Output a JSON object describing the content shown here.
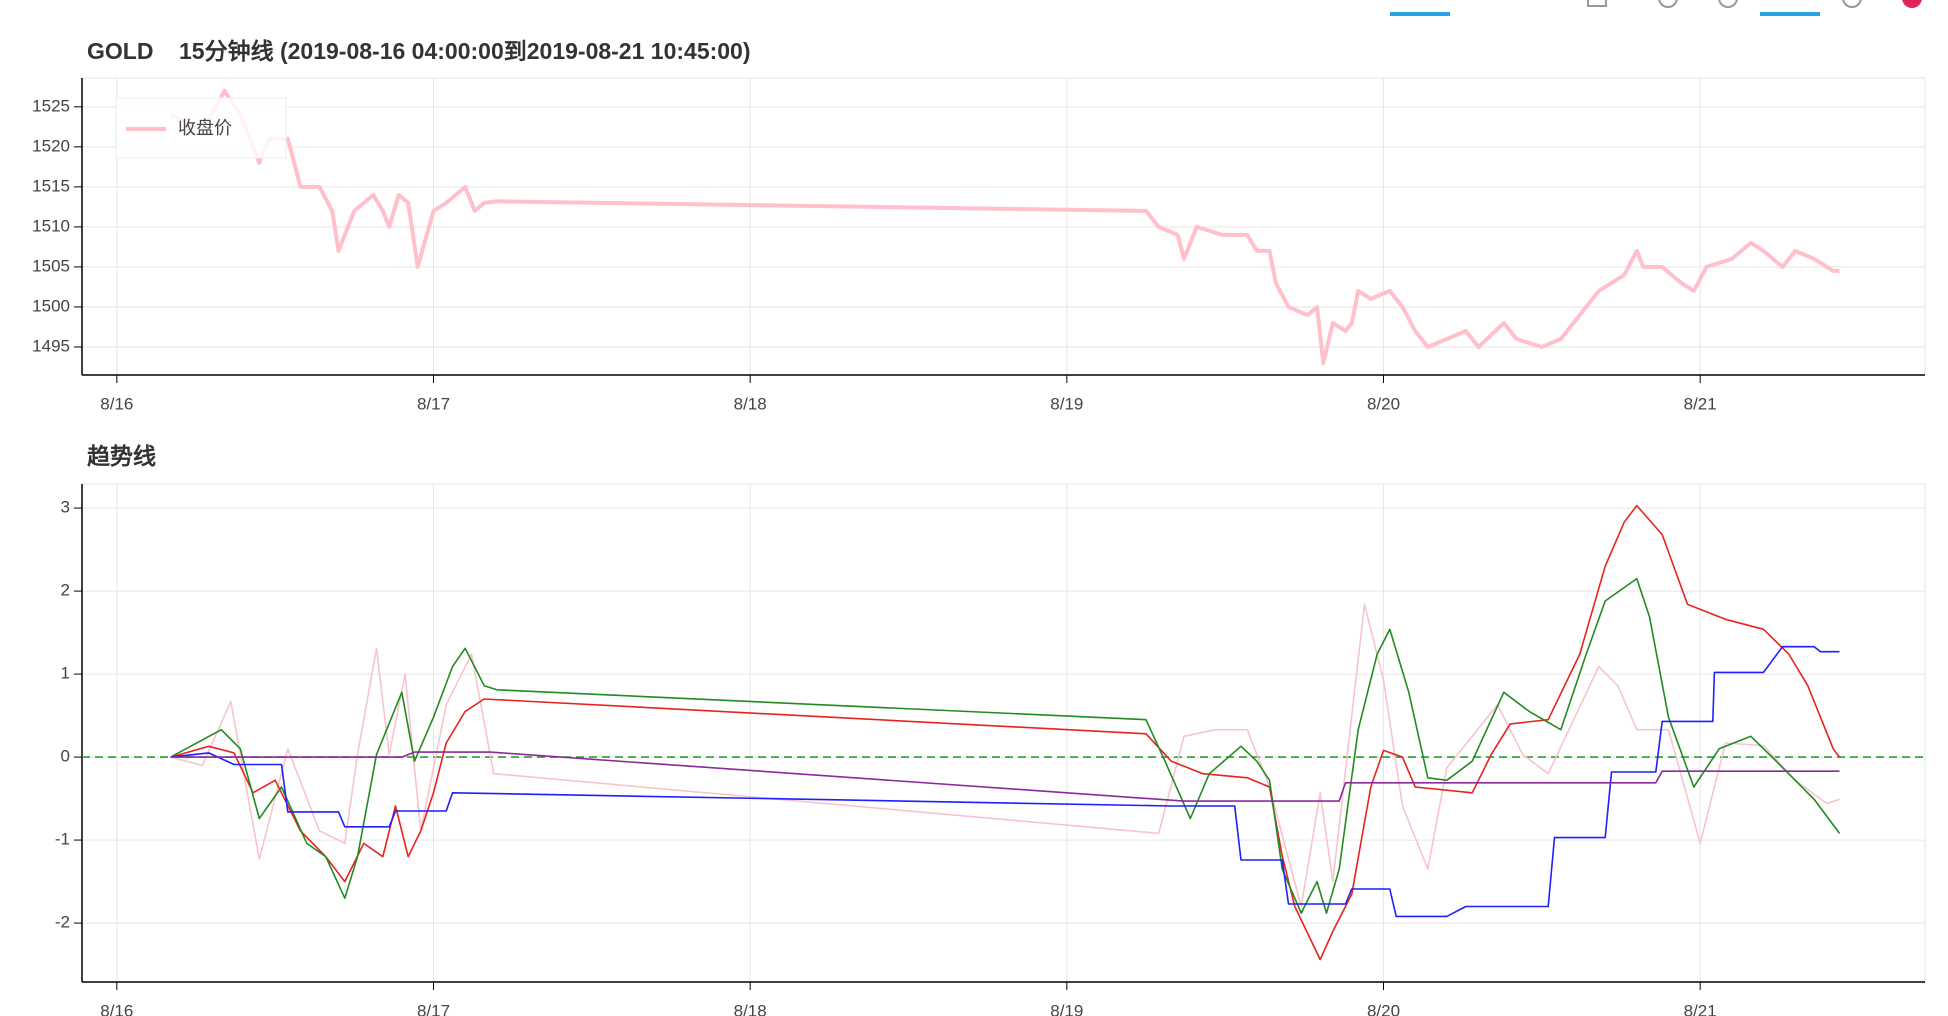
{
  "chart_data": [
    {
      "type": "line",
      "title": "GOLD    15分钟线 (2019-08-16 04:00:00到2019-08-21 10:45:00)",
      "xlim": [
        -0.11,
        5.71
      ],
      "ylim": [
        1491.5,
        1528.6
      ],
      "xticks": [
        {
          "value": 0,
          "label": "8/16"
        },
        {
          "value": 1,
          "label": "8/17"
        },
        {
          "value": 2,
          "label": "8/18"
        },
        {
          "value": 3,
          "label": "8/19"
        },
        {
          "value": 4,
          "label": "8/20"
        },
        {
          "value": 5,
          "label": "8/21"
        }
      ],
      "yticks": [
        1495,
        1500,
        1505,
        1510,
        1515,
        1520,
        1525
      ],
      "grid": true,
      "legend": "top-left",
      "line_width": 4,
      "series": [
        {
          "name": "收盘价",
          "color": "#ffc0cb",
          "x": [
            0.17,
            0.27,
            0.34,
            0.39,
            0.45,
            0.48,
            0.54,
            0.58,
            0.64,
            0.68,
            0.7,
            0.75,
            0.81,
            0.84,
            0.86,
            0.89,
            0.92,
            0.95,
            1.0,
            1.04,
            1.1,
            1.13,
            1.16,
            1.2,
            3.25,
            3.29,
            3.35,
            3.37,
            3.41,
            3.49,
            3.57,
            3.6,
            3.64,
            3.66,
            3.7,
            3.76,
            3.79,
            3.81,
            3.84,
            3.88,
            3.9,
            3.92,
            3.96,
            4.02,
            4.06,
            4.1,
            4.14,
            4.2,
            4.26,
            4.3,
            4.38,
            4.42,
            4.5,
            4.56,
            4.62,
            4.68,
            4.72,
            4.76,
            4.8,
            4.82,
            4.88,
            4.94,
            4.98,
            5.02,
            5.1,
            5.16,
            5.2,
            5.26,
            5.3,
            5.36,
            5.42,
            5.44
          ],
          "values": [
            1524,
            1522,
            1527,
            1524,
            1518,
            1521,
            1521,
            1515,
            1515,
            1512,
            1507,
            1512,
            1514,
            1512,
            1510,
            1514,
            1513,
            1505,
            1512,
            1513,
            1515,
            1512,
            1513,
            1513.2,
            1512,
            1510,
            1509,
            1506,
            1510,
            1509,
            1509,
            1507,
            1507,
            1503,
            1500,
            1499,
            1500,
            1493,
            1498,
            1497,
            1498,
            1502,
            1501,
            1502,
            1500,
            1497,
            1495,
            1496,
            1497,
            1495,
            1498,
            1496,
            1495,
            1496,
            1499,
            1502,
            1503,
            1504,
            1507,
            1505,
            1505,
            1503,
            1502,
            1505,
            1506,
            1508,
            1507,
            1505,
            1507,
            1506,
            1504.5,
            1504.5
          ]
        }
      ]
    },
    {
      "type": "line",
      "title": "趋势线",
      "xlim": [
        -0.11,
        5.71
      ],
      "ylim": [
        -2.71,
        3.29
      ],
      "xticks": [
        {
          "value": 0,
          "label": "8/16"
        },
        {
          "value": 1,
          "label": "8/17"
        },
        {
          "value": 2,
          "label": "8/18"
        },
        {
          "value": 3,
          "label": "8/19"
        },
        {
          "value": 4,
          "label": "8/20"
        },
        {
          "value": 5,
          "label": "8/21"
        }
      ],
      "yticks": [
        -2,
        -1,
        0,
        1,
        2,
        3
      ],
      "grid": true,
      "line_width": 1.6,
      "hlines": [
        {
          "value": 0,
          "color": "#2ca02c",
          "style": "dashed"
        }
      ],
      "series": [
        {
          "color": "#f8c4cc",
          "x": [
            0.17,
            0.27,
            0.36,
            0.45,
            0.54,
            0.64,
            0.72,
            0.76,
            0.82,
            0.86,
            0.91,
            0.96,
            1.04,
            1.12,
            1.19,
            3.29,
            3.37,
            3.47,
            3.57,
            3.64,
            3.74,
            3.8,
            3.84,
            3.94,
            4.0,
            4.06,
            4.14,
            4.2,
            4.36,
            4.44,
            4.52,
            4.68,
            4.74,
            4.8,
            4.9,
            5.0,
            5.08,
            5.2,
            5.3,
            5.4,
            5.44
          ],
          "values": [
            0,
            -0.1,
            0.67,
            -1.23,
            0.1,
            -0.89,
            -1.04,
            0.03,
            1.31,
            0.03,
            1.0,
            -0.89,
            0.63,
            1.24,
            -0.2,
            -0.92,
            0.25,
            0.33,
            0.33,
            -0.36,
            -1.8,
            -0.43,
            -1.5,
            1.84,
            0.93,
            -0.59,
            -1.35,
            -0.13,
            0.63,
            0.03,
            -0.2,
            1.09,
            0.86,
            0.33,
            0.33,
            -1.04,
            0.17,
            0.14,
            -0.28,
            -0.56,
            -0.51
          ]
        },
        {
          "color": "#e8231f",
          "x": [
            0.17,
            0.29,
            0.37,
            0.43,
            0.5,
            0.58,
            0.66,
            0.72,
            0.78,
            0.84,
            0.88,
            0.92,
            0.96,
            1.0,
            1.04,
            1.1,
            1.16,
            3.25,
            3.33,
            3.43,
            3.57,
            3.64,
            3.68,
            3.72,
            3.8,
            3.84,
            3.9,
            3.96,
            4.0,
            4.06,
            4.1,
            4.28,
            4.34,
            4.4,
            4.52,
            4.62,
            4.7,
            4.76,
            4.8,
            4.88,
            4.96,
            5.08,
            5.2,
            5.28,
            5.34,
            5.42,
            5.44
          ],
          "values": [
            0,
            0.13,
            0.05,
            -0.43,
            -0.28,
            -0.89,
            -1.2,
            -1.5,
            -1.04,
            -1.2,
            -0.59,
            -1.2,
            -0.89,
            -0.43,
            0.17,
            0.55,
            0.7,
            0.28,
            -0.05,
            -0.2,
            -0.25,
            -0.36,
            -1.19,
            -1.8,
            -2.44,
            -2.1,
            -1.65,
            -0.36,
            0.08,
            0,
            -0.36,
            -0.43,
            0.03,
            0.4,
            0.45,
            1.24,
            2.3,
            2.83,
            3.03,
            2.68,
            1.84,
            1.66,
            1.54,
            1.24,
            0.86,
            0.1,
            0.0
          ]
        },
        {
          "color": "#228b22",
          "x": [
            0.17,
            0.33,
            0.39,
            0.45,
            0.52,
            0.6,
            0.66,
            0.72,
            0.76,
            0.82,
            0.9,
            0.94,
            1.0,
            1.06,
            1.1,
            1.16,
            1.2,
            3.25,
            3.31,
            3.39,
            3.45,
            3.55,
            3.6,
            3.64,
            3.68,
            3.74,
            3.79,
            3.82,
            3.86,
            3.92,
            3.98,
            4.02,
            4.08,
            4.14,
            4.2,
            4.28,
            4.38,
            4.46,
            4.56,
            4.64,
            4.7,
            4.8,
            4.84,
            4.9,
            4.98,
            5.06,
            5.16,
            5.24,
            5.36,
            5.44
          ],
          "values": [
            0,
            0.33,
            0.1,
            -0.74,
            -0.36,
            -1.04,
            -1.2,
            -1.7,
            -1.2,
            0.03,
            0.78,
            -0.05,
            0.48,
            1.09,
            1.31,
            0.86,
            0.81,
            0.45,
            -0.05,
            -0.74,
            -0.2,
            0.13,
            -0.05,
            -0.28,
            -1.35,
            -1.88,
            -1.5,
            -1.88,
            -1.35,
            0.33,
            1.24,
            1.54,
            0.78,
            -0.25,
            -0.28,
            -0.05,
            0.78,
            0.55,
            0.33,
            1.24,
            1.88,
            2.15,
            1.69,
            0.48,
            -0.36,
            0.1,
            0.25,
            -0.05,
            -0.51,
            -0.92
          ]
        },
        {
          "color": "#1f1fff",
          "x": [
            0.17,
            0.29,
            0.37,
            0.52,
            0.54,
            0.7,
            0.72,
            0.86,
            0.88,
            1.04,
            1.06,
            3.33,
            3.53,
            3.55,
            3.68,
            3.7,
            3.88,
            3.9,
            4.02,
            4.04,
            4.2,
            4.26,
            4.52,
            4.54,
            4.7,
            4.72,
            4.86,
            4.88,
            5.04,
            5.045,
            5.2,
            5.26,
            5.36,
            5.38,
            5.44
          ],
          "values": [
            0,
            0.05,
            -0.09,
            -0.09,
            -0.66,
            -0.66,
            -0.84,
            -0.84,
            -0.65,
            -0.65,
            -0.43,
            -0.59,
            -0.59,
            -1.24,
            -1.24,
            -1.77,
            -1.77,
            -1.59,
            -1.59,
            -1.92,
            -1.92,
            -1.8,
            -1.8,
            -0.97,
            -0.97,
            -0.18,
            -0.18,
            0.43,
            0.43,
            1.02,
            1.02,
            1.33,
            1.33,
            1.27,
            1.27
          ]
        },
        {
          "color": "#8b2a9b",
          "x": [
            0.17,
            0.35,
            0.9,
            0.94,
            1.18,
            3.37,
            3.86,
            3.88,
            4.86,
            4.88,
            5.44
          ],
          "values": [
            0,
            0,
            0,
            0.06,
            0.06,
            -0.53,
            -0.53,
            -0.31,
            -0.31,
            -0.17,
            -0.17
          ]
        }
      ]
    }
  ]
}
